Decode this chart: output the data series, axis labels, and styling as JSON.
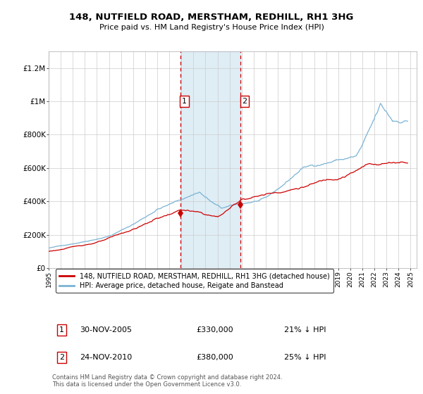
{
  "title": "148, NUTFIELD ROAD, MERSTHAM, REDHILL, RH1 3HG",
  "subtitle": "Price paid vs. HM Land Registry's House Price Index (HPI)",
  "ylabel_ticks": [
    "£0",
    "£200K",
    "£400K",
    "£600K",
    "£800K",
    "£1M",
    "£1.2M"
  ],
  "ytick_values": [
    0,
    200000,
    400000,
    600000,
    800000,
    1000000,
    1200000
  ],
  "ylim": [
    0,
    1300000
  ],
  "xlim_start": 1995.0,
  "xlim_end": 2025.5,
  "hpi_color": "#7ab3d4",
  "prop_color": "#cc0000",
  "shade_color": "#daeaf4",
  "marker_border_color": "#cc0000",
  "background_color": "#ffffff",
  "legend_label_prop": "148, NUTFIELD ROAD, MERSTHAM, REDHILL, RH1 3HG (detached house)",
  "legend_label_hpi": "HPI: Average price, detached house, Reigate and Banstead",
  "footnote": "Contains HM Land Registry data © Crown copyright and database right 2024.\nThis data is licensed under the Open Government Licence v3.0.",
  "sale1_x": 2005.917,
  "sale1_y": 330000,
  "sale1_label": "1",
  "sale2_x": 2010.917,
  "sale2_y": 380000,
  "sale2_label": "2",
  "shade_x1": 2005.917,
  "shade_x2": 2010.917,
  "table_rows": [
    {
      "num": "1",
      "date": "30-NOV-2005",
      "price": "£330,000",
      "pct": "21% ↓ HPI"
    },
    {
      "num": "2",
      "date": "24-NOV-2010",
      "price": "£380,000",
      "pct": "25% ↓ HPI"
    }
  ]
}
